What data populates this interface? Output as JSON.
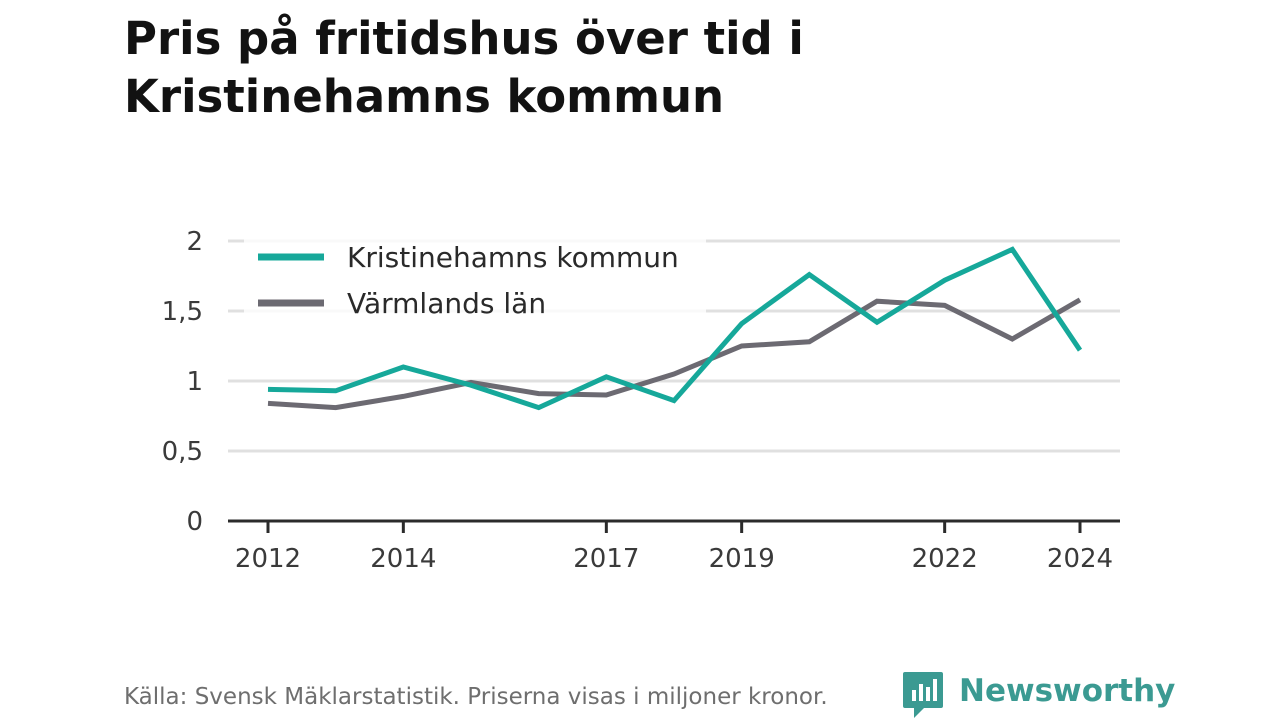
{
  "title_line1": "Pris på fritidshus över tid i",
  "title_line2": "Kristinehamns kommun",
  "footer": "Källa: Svensk Mäklarstatistik. Priserna visas i miljoner kronor.",
  "brand": {
    "name": "Newsworthy",
    "icon": "newsworthy-logo-icon",
    "color": "#3b9a92"
  },
  "chart_data": {
    "type": "line",
    "title": "Pris på fritidshus över tid i Kristinehamns kommun",
    "xlabel": "",
    "ylabel": "",
    "x": [
      2012,
      2013,
      2014,
      2015,
      2016,
      2017,
      2018,
      2019,
      2020,
      2021,
      2022,
      2023,
      2024
    ],
    "x_ticks": [
      2012,
      2014,
      2017,
      2019,
      2022,
      2024
    ],
    "x_tick_labels": [
      "2012",
      "2014",
      "2017",
      "2019",
      "2022",
      "2024"
    ],
    "ylim": [
      0,
      2
    ],
    "y_ticks": [
      0,
      0.5,
      1,
      1.5,
      2
    ],
    "y_tick_labels": [
      "0",
      "0,5",
      "1",
      "1,5",
      "2"
    ],
    "grid": true,
    "legend_position": "top-left",
    "series": [
      {
        "name": "Kristinehamns kommun",
        "color": "#16a89a",
        "values": [
          0.94,
          0.93,
          1.1,
          0.97,
          0.81,
          1.03,
          0.86,
          1.41,
          1.76,
          1.42,
          1.72,
          1.94,
          1.22
        ]
      },
      {
        "name": "Värmlands län",
        "color": "#6c6a72",
        "values": [
          0.84,
          0.81,
          0.89,
          0.99,
          0.91,
          0.9,
          1.05,
          1.25,
          1.28,
          1.57,
          1.54,
          1.3,
          1.58
        ]
      }
    ]
  }
}
